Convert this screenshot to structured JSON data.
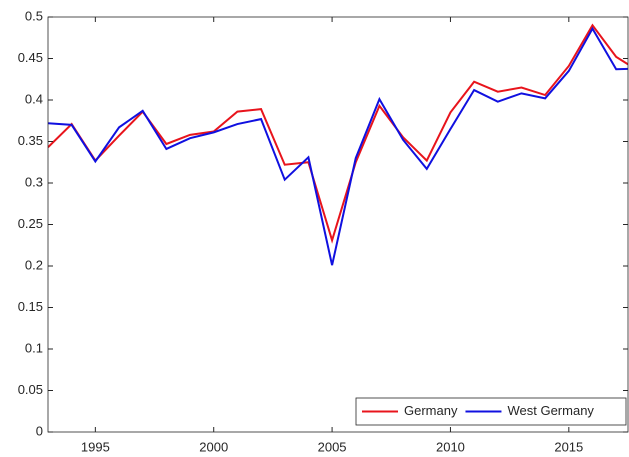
{
  "chart_data": {
    "type": "line",
    "x": [
      1993,
      1994,
      1995,
      1996,
      1997,
      1998,
      1999,
      2000,
      2001,
      2002,
      2003,
      2004,
      2005,
      2006,
      2007,
      2008,
      2009,
      2010,
      2011,
      2012,
      2013,
      2014,
      2015,
      2016,
      2017,
      2018
    ],
    "series": [
      {
        "name": "Germany",
        "color": "#e8141c",
        "values": [
          0.343,
          0.371,
          0.327,
          0.357,
          0.386,
          0.347,
          0.358,
          0.362,
          0.386,
          0.389,
          0.322,
          0.325,
          0.231,
          0.325,
          0.393,
          0.355,
          0.327,
          0.385,
          0.422,
          0.41,
          0.415,
          0.406,
          0.441,
          0.49,
          0.452,
          0.434
        ]
      },
      {
        "name": "West Germany",
        "color": "#1010e0",
        "values": [
          0.372,
          0.37,
          0.326,
          0.367,
          0.387,
          0.341,
          0.354,
          0.361,
          0.371,
          0.377,
          0.304,
          0.331,
          0.201,
          0.33,
          0.401,
          0.352,
          0.317,
          0.365,
          0.412,
          0.398,
          0.408,
          0.402,
          0.435,
          0.486,
          0.437,
          0.438
        ]
      }
    ],
    "xlim": [
      1993,
      2017.5
    ],
    "xticks": [
      1995,
      2000,
      2005,
      2010,
      2015
    ],
    "ylim": [
      0,
      0.5
    ],
    "yticks": [
      0,
      0.05,
      0.1,
      0.15,
      0.2,
      0.25,
      0.3,
      0.35,
      0.4,
      0.45,
      0.5
    ],
    "legend": "lower right"
  }
}
